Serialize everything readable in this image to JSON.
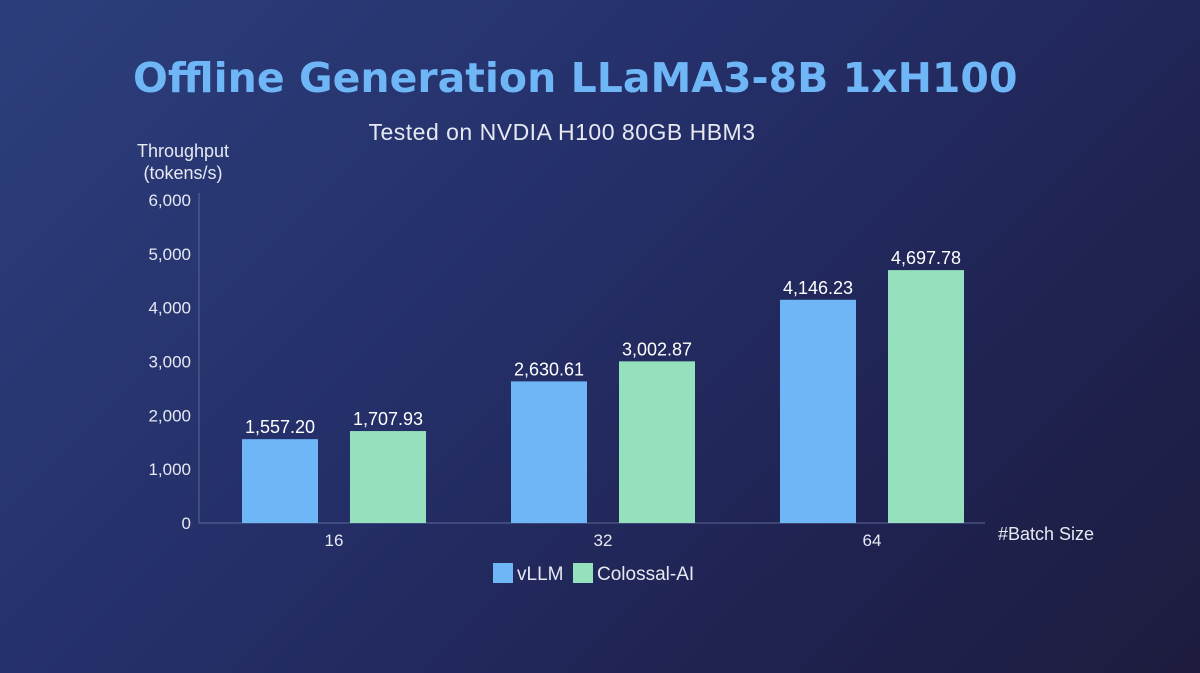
{
  "chart_data": {
    "type": "bar",
    "title": "Offline Generation LLaMA3-8B 1xH100",
    "subtitle": "Tested on NVDIA H100 80GB HBM3",
    "ylabel_line1": "Throughput",
    "ylabel_line2": "(tokens/s)",
    "xlabel": "#Batch Size",
    "categories": [
      "16",
      "32",
      "64"
    ],
    "ylim": [
      0,
      6000
    ],
    "yticks": [
      0,
      1000,
      2000,
      3000,
      4000,
      5000,
      6000
    ],
    "ytick_labels": [
      "0",
      "1,000",
      "2,000",
      "3,000",
      "4,000",
      "5,000",
      "6,000"
    ],
    "grid": false,
    "legend_position": "bottom-center",
    "series": [
      {
        "name": "vLLM",
        "color": "#6fb6f7",
        "values": [
          1557.2,
          2630.61,
          4146.23
        ],
        "labels": [
          "1,557.20",
          "2,630.61",
          "4,146.23"
        ]
      },
      {
        "name": "Colossal-AI",
        "color": "#95e0bd",
        "values": [
          1707.93,
          3002.87,
          4697.78
        ],
        "labels": [
          "1,707.93",
          "3,002.87",
          "4,697.78"
        ]
      }
    ]
  }
}
